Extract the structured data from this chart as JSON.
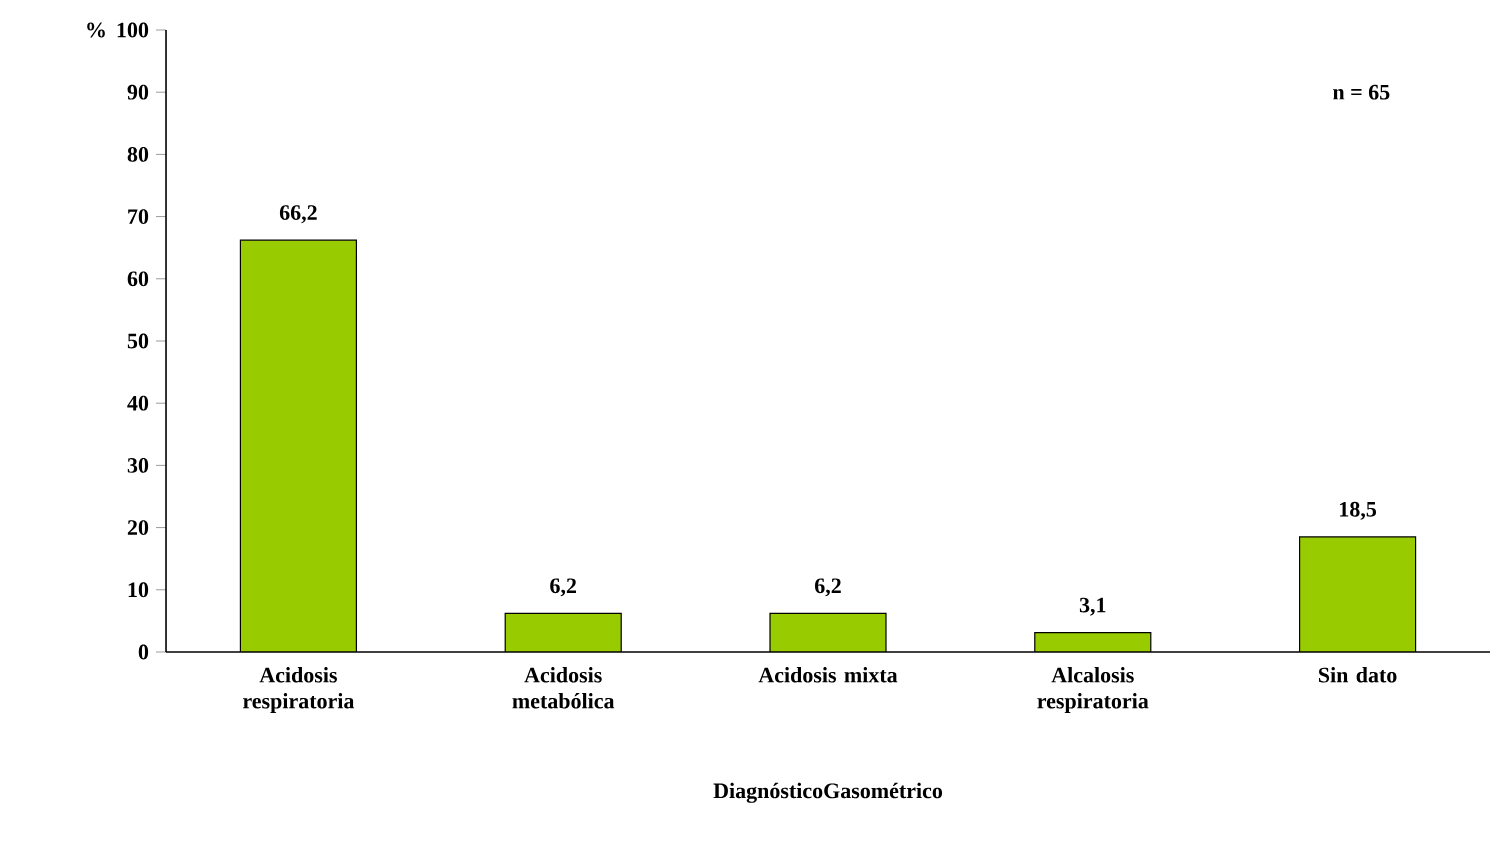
{
  "chart_data": {
    "type": "bar",
    "ylabel": "%",
    "xlabel": "DiagnósticoGasométrico",
    "categories": [
      "Acidosis respiratoria",
      "Acidosis metabólica",
      "Acidosis mixta",
      "Alcalosis respiratoria",
      "Sin dato"
    ],
    "values": [
      66.2,
      6.2,
      6.2,
      3.1,
      18.5
    ],
    "value_labels": [
      "66,2",
      "6,2",
      "6,2",
      "3,1",
      "18,5"
    ],
    "color": "#99cc00",
    "ylim": [
      0,
      100
    ],
    "yticks": [
      0,
      10,
      20,
      30,
      40,
      50,
      60,
      70,
      80,
      90,
      100
    ],
    "annotations": [
      "n = 65"
    ],
    "grid": false
  }
}
